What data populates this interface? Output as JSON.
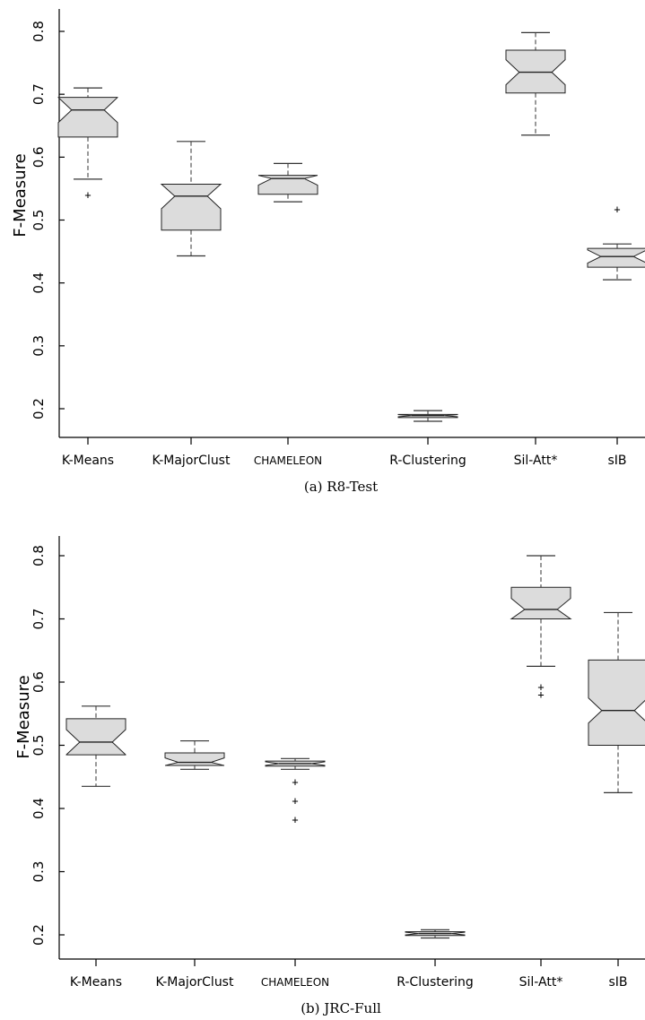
{
  "chart_data": [
    {
      "type": "boxplot",
      "caption": "(a)  R8-Test",
      "ylabel": "F-Measure",
      "ylim": [
        0.15,
        0.83
      ],
      "yticks": [
        "0.2",
        "0.3",
        "0.4",
        "0.5",
        "0.6",
        "0.7",
        "0.8"
      ],
      "categories": [
        "K-Means",
        "K-MajorClust",
        "CHAMELEON",
        "R-Clustering",
        "Sil-Att*",
        "sIB"
      ],
      "boxes": [
        {
          "category": "K-Means",
          "whislo": 0.565,
          "q1": 0.632,
          "med": 0.675,
          "q3": 0.695,
          "whishi": 0.71,
          "fliers": [
            0.54
          ]
        },
        {
          "category": "K-MajorClust",
          "whislo": 0.443,
          "q1": 0.484,
          "med": 0.538,
          "q3": 0.557,
          "whishi": 0.625,
          "fliers": []
        },
        {
          "category": "CHAMELEON",
          "whislo": 0.529,
          "q1": 0.541,
          "med": 0.566,
          "q3": 0.571,
          "whishi": 0.59,
          "fliers": []
        },
        {
          "category": "R-Clustering",
          "whislo": 0.18,
          "q1": 0.186,
          "med": 0.189,
          "q3": 0.191,
          "whishi": 0.197,
          "fliers": []
        },
        {
          "category": "Sil-Att*",
          "whislo": 0.635,
          "q1": 0.702,
          "med": 0.735,
          "q3": 0.77,
          "whishi": 0.798,
          "fliers": []
        },
        {
          "category": "sIB",
          "whislo": 0.405,
          "q1": 0.425,
          "med": 0.442,
          "q3": 0.455,
          "whishi": 0.462,
          "fliers": [
            0.517
          ]
        }
      ]
    },
    {
      "type": "boxplot",
      "caption": "(b)  JRC-Full",
      "ylabel": "F-Measure",
      "ylim": [
        0.17,
        0.83
      ],
      "yticks": [
        "0.2",
        "0.3",
        "0.4",
        "0.5",
        "0.6",
        "0.7",
        "0.8"
      ],
      "categories": [
        "K-Means",
        "K-MajorClust",
        "CHAMELEON",
        "R-Clustering",
        "Sil-Att*",
        "sIB"
      ],
      "boxes": [
        {
          "category": "K-Means",
          "whislo": 0.435,
          "q1": 0.485,
          "med": 0.505,
          "q3": 0.542,
          "whishi": 0.562,
          "fliers": []
        },
        {
          "category": "K-MajorClust",
          "whislo": 0.462,
          "q1": 0.468,
          "med": 0.473,
          "q3": 0.488,
          "whishi": 0.507,
          "fliers": []
        },
        {
          "category": "CHAMELEON",
          "whislo": 0.462,
          "q1": 0.467,
          "med": 0.471,
          "q3": 0.475,
          "whishi": 0.479,
          "fliers": [
            0.442,
            0.412,
            0.382
          ]
        },
        {
          "category": "R-Clustering",
          "whislo": 0.195,
          "q1": 0.199,
          "med": 0.202,
          "q3": 0.205,
          "whishi": 0.208,
          "fliers": []
        },
        {
          "category": "Sil-Att*",
          "whislo": 0.625,
          "q1": 0.7,
          "med": 0.715,
          "q3": 0.75,
          "whishi": 0.8,
          "fliers": [
            0.592,
            0.58
          ]
        },
        {
          "category": "sIB",
          "whislo": 0.425,
          "q1": 0.5,
          "med": 0.555,
          "q3": 0.635,
          "whishi": 0.71,
          "fliers": []
        }
      ]
    }
  ]
}
